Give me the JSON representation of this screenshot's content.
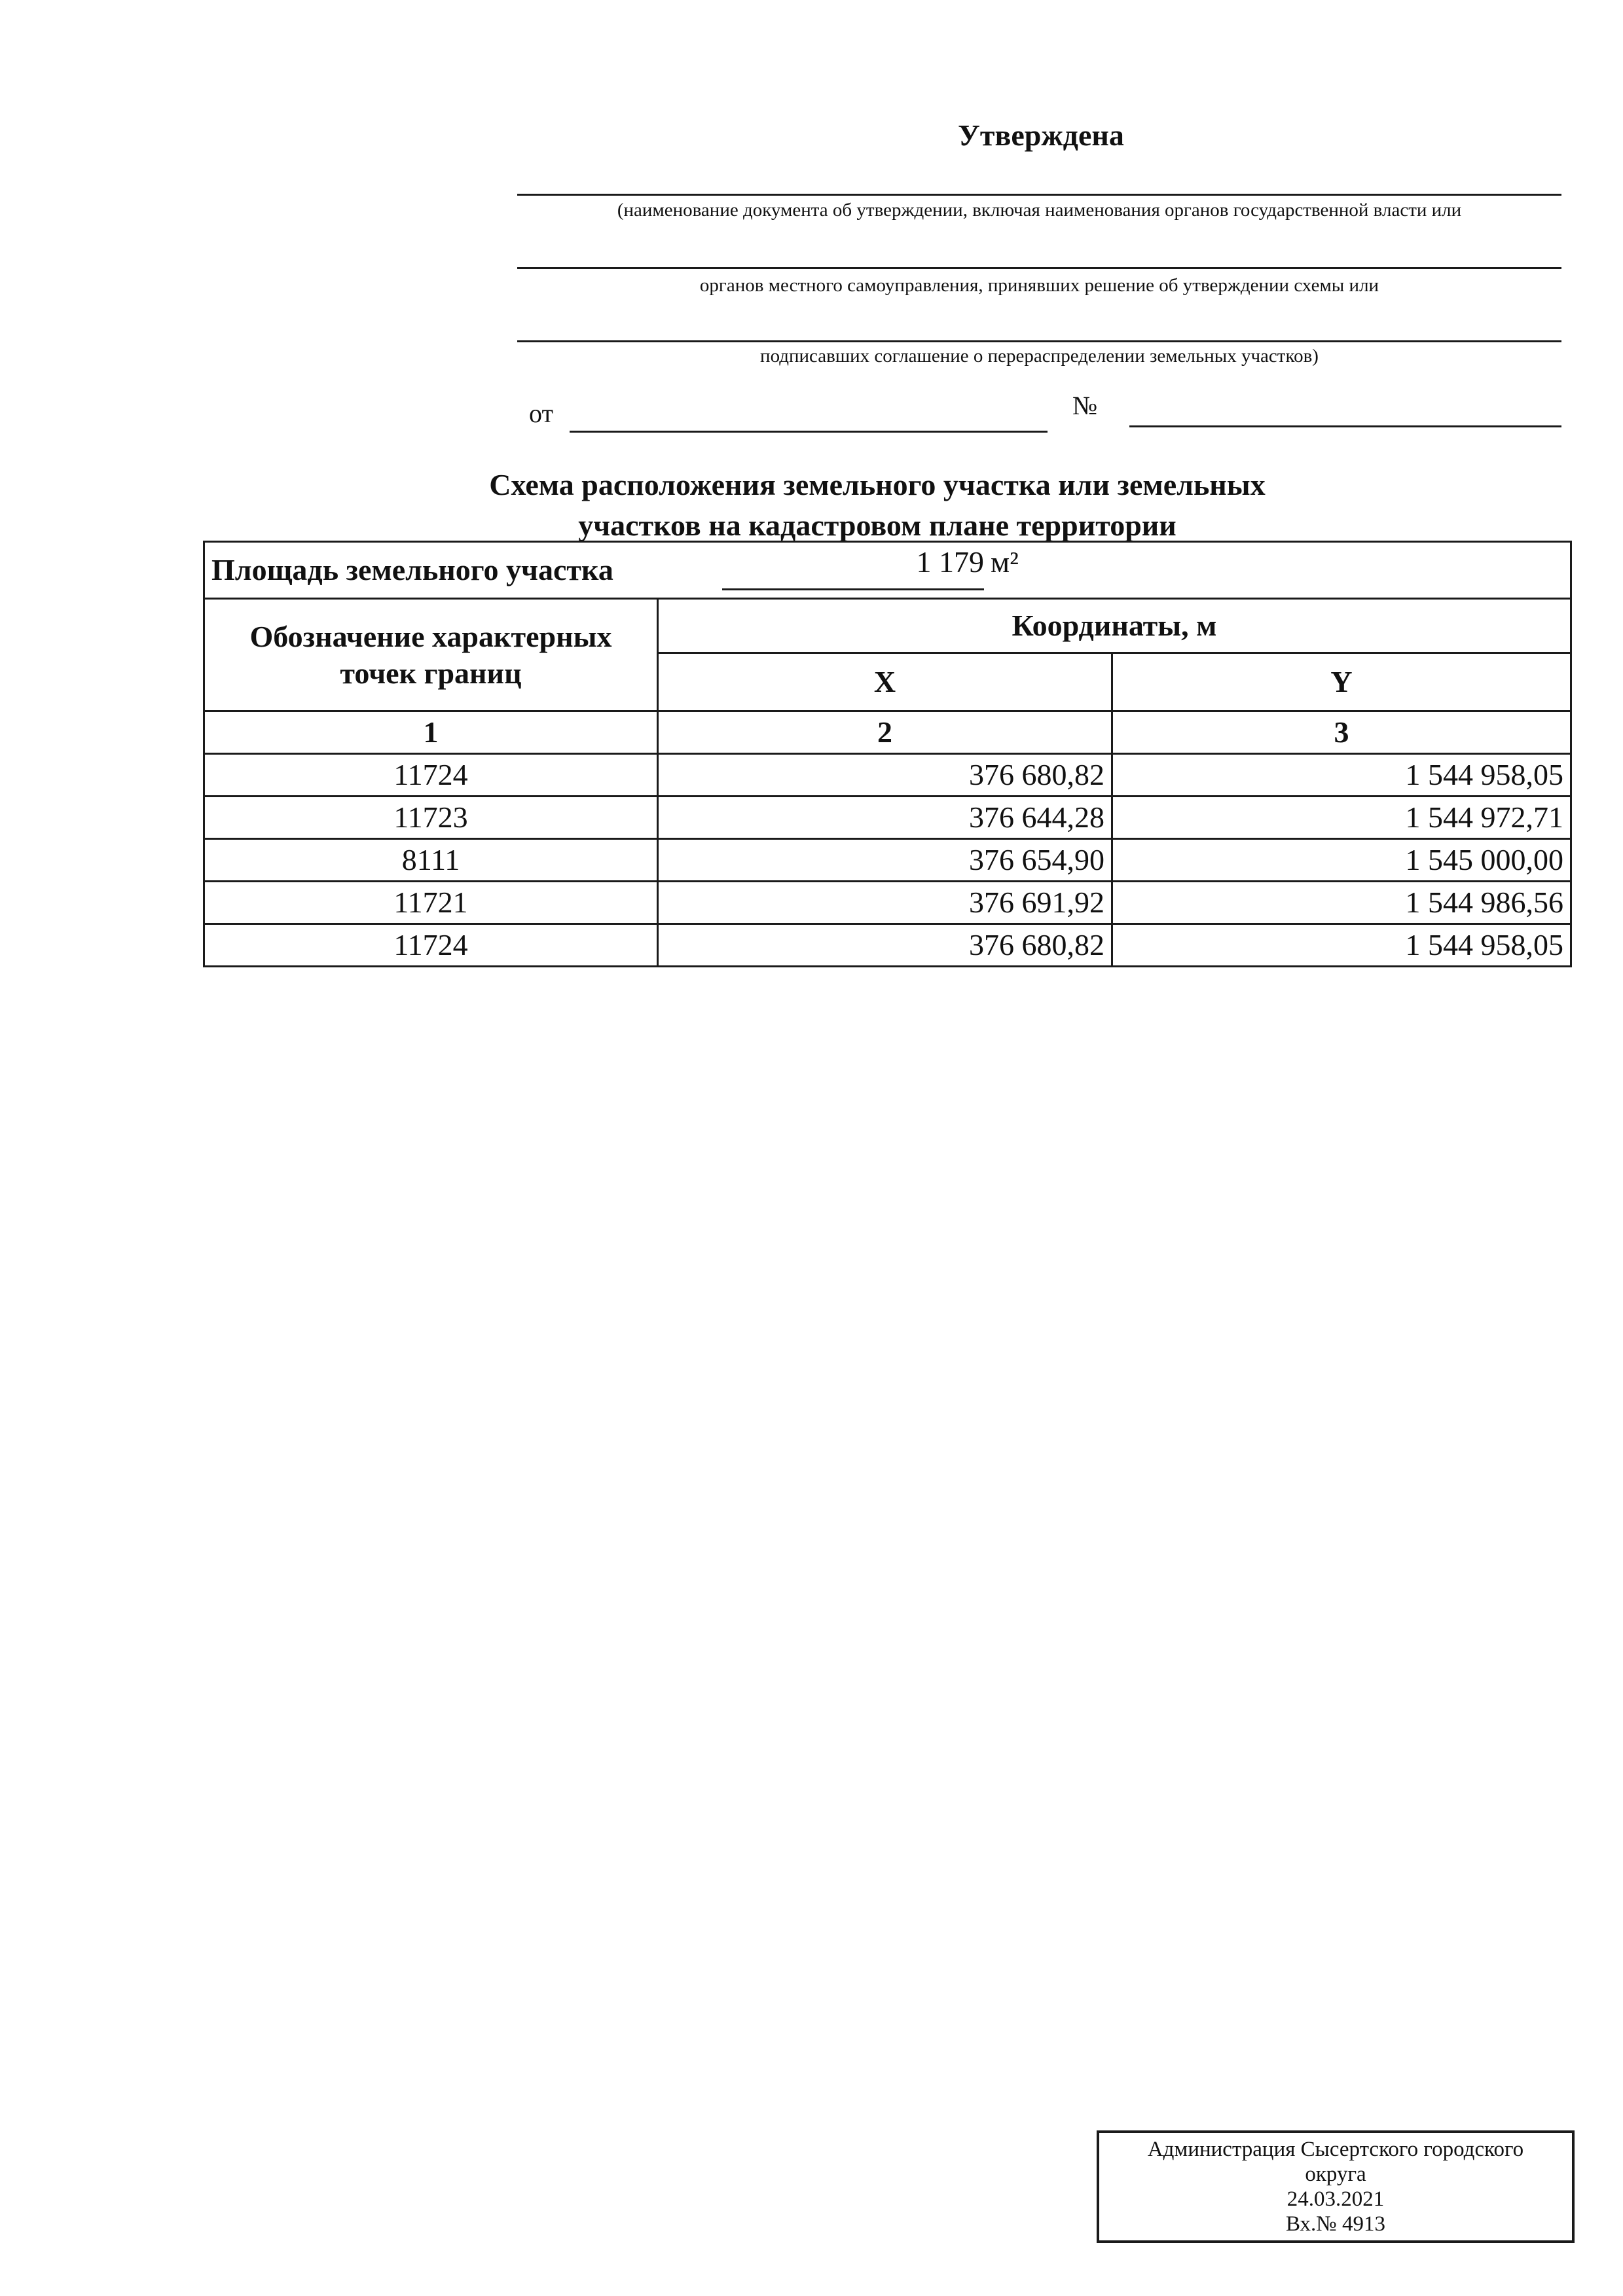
{
  "header": {
    "approved": "Утверждена",
    "caption_1": "(наименование документа об утверждении, включая наименования органов государственной власти или",
    "caption_2": "органов местного самоуправления, принявших решение об утверждении схемы или",
    "caption_3": "подписавших соглашение о перераспределении земельных участков)",
    "from_label": "от",
    "number_label": "№"
  },
  "title": {
    "line1": "Схема расположения земельного участка или земельных",
    "line2": "участков на кадастровом плане территории"
  },
  "table": {
    "area_label": "Площадь земельного участка",
    "area_value": "1 179",
    "area_unit": "м²",
    "col_points": "Обозначение характерных точек границ",
    "col_coords": "Координаты, м",
    "col_x": "X",
    "col_y": "Y",
    "num_1": "1",
    "num_2": "2",
    "num_3": "3",
    "rows": [
      {
        "point": "11724",
        "x": "376 680,82",
        "y": "1 544 958,05"
      },
      {
        "point": "11723",
        "x": "376 644,28",
        "y": "1 544 972,71"
      },
      {
        "point": "8111",
        "x": "376 654,90",
        "y": "1 545 000,00"
      },
      {
        "point": "11721",
        "x": "376 691,92",
        "y": "1 544 986,56"
      },
      {
        "point": "11724",
        "x": "376 680,82",
        "y": "1 544 958,05"
      }
    ]
  },
  "stamp": {
    "line1": "Администрация Сысертского городского",
    "line2": "округа",
    "date": "24.03.2021",
    "reg_number": "Вх.№ 4913"
  }
}
